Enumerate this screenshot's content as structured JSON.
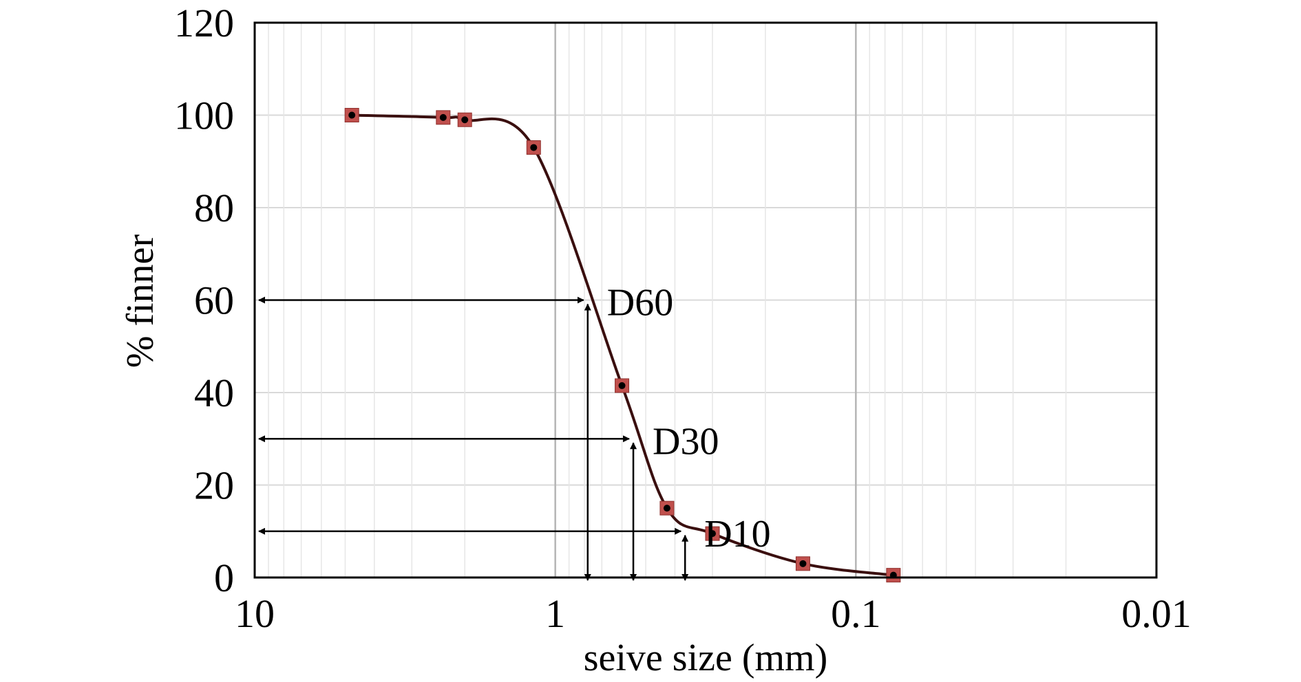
{
  "chart_data": {
    "type": "line",
    "xlabel": "seive size (mm)",
    "ylabel": "% finner",
    "x_scale": "log",
    "x_reversed": true,
    "xlim": [
      10,
      0.01
    ],
    "ylim": [
      0,
      120
    ],
    "x_ticks": [
      10,
      1,
      0.1,
      0.01
    ],
    "x_tick_labels": [
      "10",
      "1",
      "0.1",
      "0.01"
    ],
    "y_ticks": [
      0,
      20,
      40,
      60,
      80,
      100,
      120
    ],
    "y_tick_labels": [
      "0",
      "20",
      "40",
      "60",
      "80",
      "100",
      "120"
    ],
    "grid": true,
    "legend": "none",
    "series": [
      {
        "x": [
          4.75,
          2.36,
          2.0,
          1.18,
          0.6,
          0.425,
          0.3,
          0.15,
          0.075
        ],
        "y": [
          100,
          99.5,
          99,
          93,
          41.5,
          15,
          9.5,
          3,
          0.5
        ],
        "marker_color": "#c0504d",
        "line_color": "#3a0f0f"
      }
    ],
    "annotations": [
      {
        "text": "D60",
        "x": 0.78,
        "y": 60
      },
      {
        "text": "D30",
        "x": 0.55,
        "y": 30
      },
      {
        "text": "D10",
        "x": 0.37,
        "y": 10
      }
    ]
  }
}
